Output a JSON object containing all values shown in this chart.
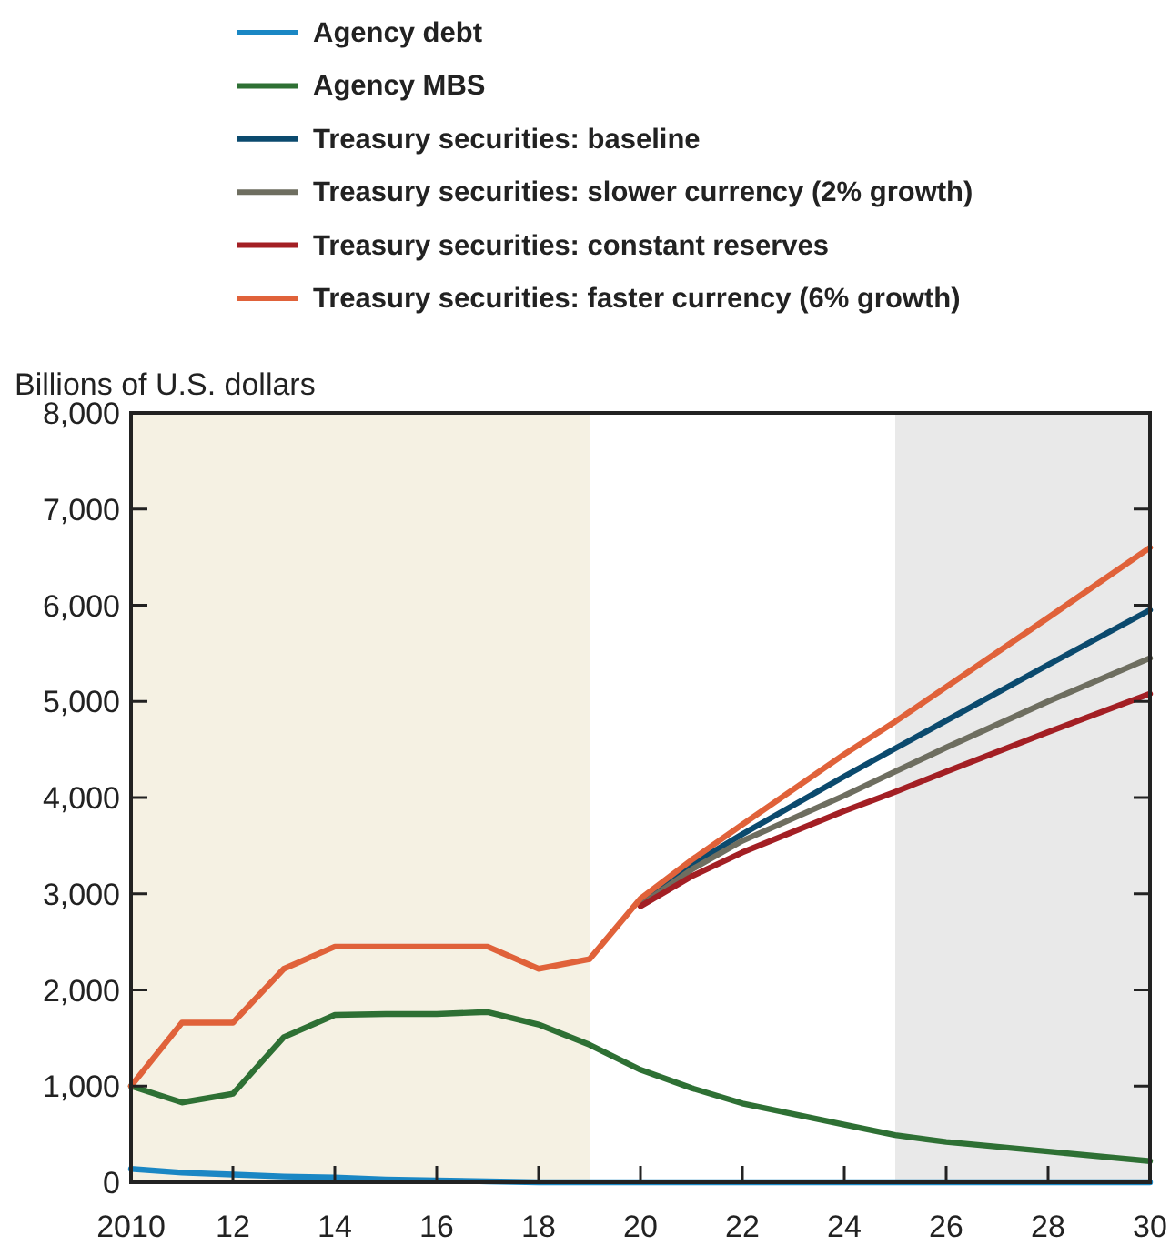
{
  "chart_data": {
    "type": "line",
    "ylabel": "Billions of U.S. dollars",
    "x": [
      2010,
      2011,
      2012,
      2013,
      2014,
      2015,
      2016,
      2017,
      2018,
      2019,
      2020,
      2021,
      2022,
      2024,
      2025,
      2026,
      2028,
      2030
    ],
    "xlim": [
      2010,
      2030
    ],
    "xticks": [
      {
        "value": 2010,
        "label": "2010"
      },
      {
        "value": 2012,
        "label": "12"
      },
      {
        "value": 2014,
        "label": "14"
      },
      {
        "value": 2016,
        "label": "16"
      },
      {
        "value": 2018,
        "label": "18"
      },
      {
        "value": 2020,
        "label": "20"
      },
      {
        "value": 2022,
        "label": "22"
      },
      {
        "value": 2024,
        "label": "24"
      },
      {
        "value": 2026,
        "label": "26"
      },
      {
        "value": 2028,
        "label": "28"
      },
      {
        "value": 2030,
        "label": "30"
      }
    ],
    "ylim": [
      0,
      8000
    ],
    "yticks": [
      {
        "value": 0,
        "label": "0"
      },
      {
        "value": 1000,
        "label": "1,000"
      },
      {
        "value": 2000,
        "label": "2,000"
      },
      {
        "value": 3000,
        "label": "3,000"
      },
      {
        "value": 4000,
        "label": "4,000"
      },
      {
        "value": 5000,
        "label": "5,000"
      },
      {
        "value": 6000,
        "label": "6,000"
      },
      {
        "value": 7000,
        "label": "7,000"
      },
      {
        "value": 8000,
        "label": "8,000"
      }
    ],
    "series": [
      {
        "name": "Agency debt",
        "color": "#1a87c4",
        "values": [
          140,
          100,
          80,
          60,
          50,
          30,
          20,
          10,
          0,
          0,
          0,
          0,
          0,
          0,
          0,
          0,
          0,
          0
        ]
      },
      {
        "name": "Agency MBS",
        "color": "#2e7034",
        "values": [
          1000,
          830,
          920,
          1510,
          1740,
          1750,
          1750,
          1770,
          1640,
          1430,
          1170,
          980,
          820,
          600,
          490,
          420,
          320,
          220
        ]
      },
      {
        "name": "Treasury securities: baseline",
        "color": "#0b4a6e",
        "values": [
          null,
          null,
          null,
          null,
          null,
          null,
          null,
          null,
          null,
          null,
          2900,
          3300,
          3620,
          4220,
          4510,
          4800,
          5380,
          5950
        ]
      },
      {
        "name": "Treasury securities: slower currency (2% growth)",
        "color": "#6e6e60",
        "values": [
          null,
          null,
          null,
          null,
          null,
          null,
          null,
          null,
          null,
          null,
          2880,
          3250,
          3550,
          4020,
          4270,
          4520,
          5000,
          5450
        ]
      },
      {
        "name": "Treasury securities: constant reserves",
        "color": "#a31f24",
        "values": [
          null,
          null,
          null,
          null,
          null,
          null,
          null,
          null,
          null,
          null,
          2870,
          3180,
          3430,
          3860,
          4060,
          4270,
          4680,
          5080
        ]
      },
      {
        "name": "Treasury securities: faster currency (6% growth)",
        "color": "#e0623a",
        "values": [
          1000,
          1660,
          1660,
          2220,
          2450,
          2450,
          2450,
          2450,
          2220,
          2320,
          2950,
          3350,
          3720,
          4450,
          4790,
          5150,
          5870,
          6600
        ]
      }
    ],
    "bands": [
      {
        "axis": "x",
        "from": 2010,
        "to": 2019,
        "color": "#f5f1e3"
      },
      {
        "axis": "x",
        "from": 2025,
        "to": 2030,
        "color": "#e9e9e9"
      }
    ],
    "legend": "top",
    "grid": false
  }
}
